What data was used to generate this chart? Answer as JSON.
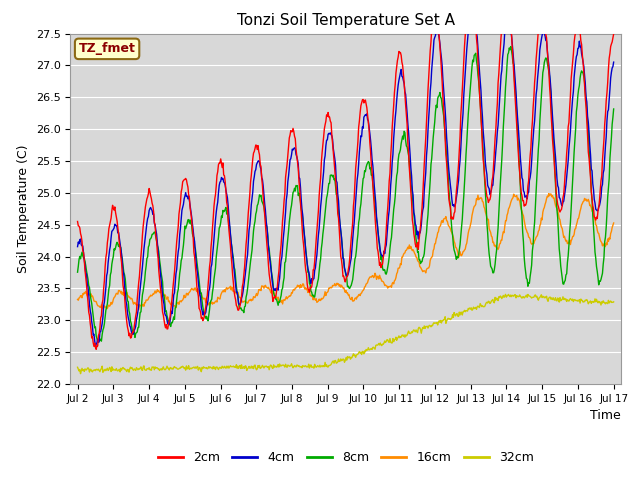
{
  "title": "Tonzi Soil Temperature Set A",
  "ylabel": "Soil Temperature (C)",
  "xlabel": "Time",
  "ylim": [
    22.0,
    27.5
  ],
  "annotation_text": "TZ_fmet",
  "annotation_color": "#8B0000",
  "annotation_bg": "#FFFFCC",
  "annotation_border": "#8B6914",
  "background_color": "#D8D8D8",
  "legend_labels": [
    "2cm",
    "4cm",
    "8cm",
    "16cm",
    "32cm"
  ],
  "line_colors": [
    "#FF0000",
    "#0000CC",
    "#00AA00",
    "#FF8C00",
    "#CCCC00"
  ],
  "xtick_labels": [
    "Jul 2",
    "Jul 3",
    "Jul 4",
    "Jul 5",
    "Jul 6",
    "Jul 7",
    "Jul 8",
    "Jul 9",
    "Jul 10",
    "Jul 11",
    "Jul 12",
    "Jul 13",
    "Jul 14",
    "Jul 15",
    "Jul 16",
    "Jul 17"
  ]
}
